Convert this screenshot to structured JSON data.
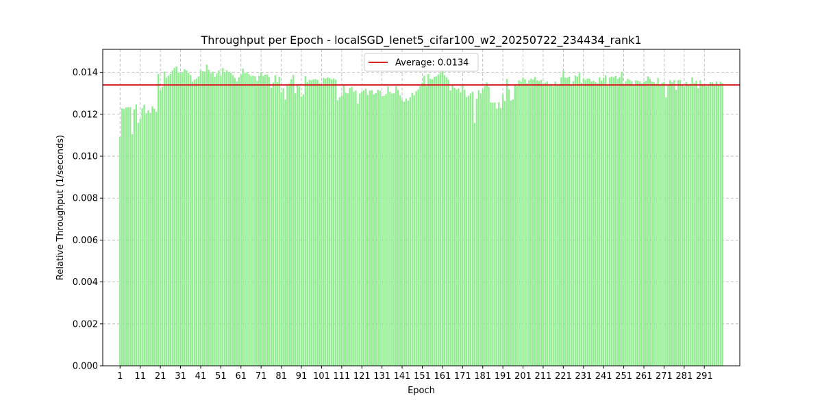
{
  "chart_data": {
    "type": "bar",
    "title": "Throughput per Epoch - localSGD_lenet5_cifar100_w2_20250722_234434_rank1",
    "xlabel": "Epoch",
    "ylabel": "Relative Throughput (1/seconds)",
    "ylim": [
      0,
      0.0151
    ],
    "yticks": [
      0.0,
      0.002,
      0.004,
      0.006,
      0.008,
      0.01,
      0.012,
      0.014
    ],
    "ytick_labels": [
      "0.000",
      "0.002",
      "0.004",
      "0.006",
      "0.008",
      "0.010",
      "0.012",
      "0.014"
    ],
    "xticks": [
      1,
      11,
      21,
      31,
      41,
      51,
      61,
      71,
      81,
      91,
      101,
      111,
      121,
      131,
      141,
      151,
      161,
      171,
      181,
      191,
      201,
      211,
      221,
      231,
      241,
      251,
      261,
      271,
      281,
      291
    ],
    "grid": true,
    "legend_position": "top-center",
    "bar_color": "#90ee90",
    "average_line": {
      "label": "Average: 0.0134",
      "value": 0.0134,
      "color": "#d62728"
    },
    "x_start": 1,
    "values": [
      0.01093,
      0.01228,
      0.01226,
      0.01233,
      0.01234,
      0.01234,
      0.01105,
      0.01224,
      0.01247,
      0.0116,
      0.01177,
      0.01229,
      0.01246,
      0.01205,
      0.01219,
      0.01207,
      0.01238,
      0.01227,
      0.01212,
      0.01392,
      0.01314,
      0.01331,
      0.01403,
      0.01375,
      0.01384,
      0.01393,
      0.01409,
      0.01421,
      0.01428,
      0.01399,
      0.01398,
      0.01401,
      0.01415,
      0.01409,
      0.01396,
      0.01387,
      0.01356,
      0.01366,
      0.01371,
      0.01381,
      0.0141,
      0.01406,
      0.01403,
      0.01437,
      0.01412,
      0.01397,
      0.01403,
      0.01379,
      0.01395,
      0.01409,
      0.01383,
      0.01421,
      0.01399,
      0.0141,
      0.01402,
      0.01398,
      0.01386,
      0.01373,
      0.01357,
      0.01376,
      0.01391,
      0.01418,
      0.01397,
      0.01401,
      0.01391,
      0.01382,
      0.01384,
      0.01381,
      0.0136,
      0.01383,
      0.01401,
      0.01382,
      0.01389,
      0.0139,
      0.01377,
      0.01327,
      0.01351,
      0.01386,
      0.01353,
      0.01379,
      0.01306,
      0.01325,
      0.0127,
      0.01339,
      0.01347,
      0.01367,
      0.01389,
      0.013,
      0.01336,
      0.01333,
      0.01285,
      0.01295,
      0.01382,
      0.01353,
      0.01364,
      0.01362,
      0.01367,
      0.01368,
      0.01364,
      0.01348,
      0.0134,
      0.01374,
      0.01371,
      0.01376,
      0.01373,
      0.01366,
      0.01371,
      0.01365,
      0.01267,
      0.01282,
      0.01289,
      0.01342,
      0.01303,
      0.013,
      0.01326,
      0.01331,
      0.01307,
      0.01313,
      0.01251,
      0.01299,
      0.01309,
      0.01314,
      0.01322,
      0.01292,
      0.01313,
      0.01315,
      0.01295,
      0.01301,
      0.01317,
      0.01312,
      0.01288,
      0.01288,
      0.01297,
      0.01333,
      0.01307,
      0.01299,
      0.013,
      0.01334,
      0.01316,
      0.0129,
      0.01268,
      0.0126,
      0.01276,
      0.01265,
      0.01281,
      0.01302,
      0.01291,
      0.0131,
      0.01318,
      0.01335,
      0.01351,
      0.01384,
      0.01335,
      0.01392,
      0.0137,
      0.01367,
      0.0138,
      0.01381,
      0.01391,
      0.01397,
      0.01411,
      0.01387,
      0.01376,
      0.01365,
      0.01314,
      0.0134,
      0.01327,
      0.01318,
      0.01323,
      0.01305,
      0.0134,
      0.01317,
      0.01282,
      0.01289,
      0.013,
      0.01308,
      0.01159,
      0.01274,
      0.01315,
      0.01299,
      0.0132,
      0.01334,
      0.01352,
      0.0133,
      0.01257,
      0.01256,
      0.01257,
      0.01227,
      0.01258,
      0.0123,
      0.01296,
      0.01263,
      0.01369,
      0.01319,
      0.01266,
      0.01271,
      0.0134,
      0.01334,
      0.01362,
      0.01356,
      0.01375,
      0.01366,
      0.01348,
      0.01362,
      0.0137,
      0.01365,
      0.01378,
      0.01362,
      0.01358,
      0.01364,
      0.01338,
      0.01351,
      0.01357,
      0.01344,
      0.01345,
      0.01334,
      0.01356,
      0.01344,
      0.01344,
      0.01377,
      0.01409,
      0.01375,
      0.01374,
      0.0138,
      0.01337,
      0.01358,
      0.01385,
      0.0138,
      0.01397,
      0.01349,
      0.01371,
      0.01364,
      0.01371,
      0.0137,
      0.01357,
      0.0136,
      0.01354,
      0.01347,
      0.01377,
      0.01361,
      0.01374,
      0.01387,
      0.01337,
      0.01375,
      0.0138,
      0.01377,
      0.01383,
      0.01369,
      0.01378,
      0.014,
      0.01341,
      0.01358,
      0.01369,
      0.01364,
      0.01358,
      0.01343,
      0.01362,
      0.0136,
      0.01357,
      0.01347,
      0.01355,
      0.0136,
      0.01381,
      0.01369,
      0.01356,
      0.01353,
      0.01346,
      0.01373,
      0.01341,
      0.0135,
      0.01354,
      0.01281,
      0.01342,
      0.01362,
      0.01352,
      0.01363,
      0.01317,
      0.01362,
      0.01364,
      0.01341,
      0.01333,
      0.01354,
      0.01341,
      0.01346,
      0.01377,
      0.01349,
      0.0136,
      0.01324,
      0.01363,
      0.01342,
      0.01341,
      0.01334,
      0.01339,
      0.01353,
      0.01352,
      0.01344,
      0.01357,
      0.01339,
      0.01355,
      0.01349
    ]
  }
}
